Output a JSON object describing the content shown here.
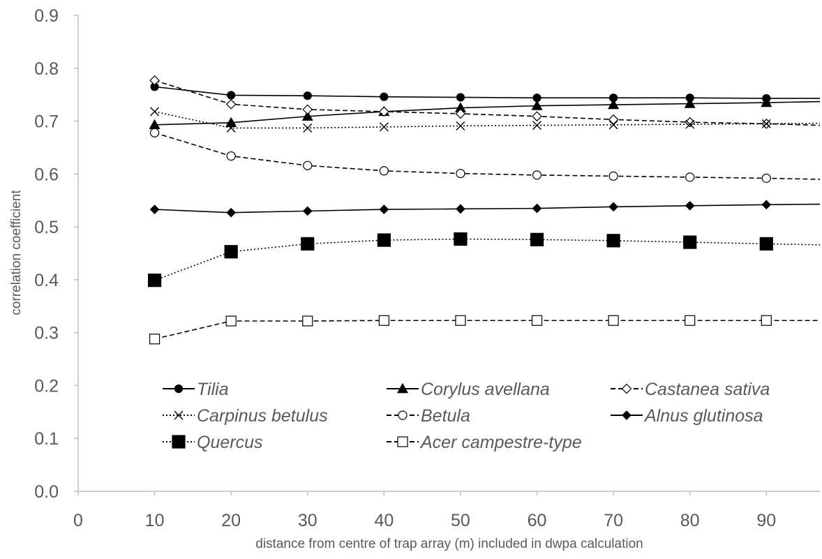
{
  "chart_data": {
    "type": "line",
    "title": "",
    "xlabel": "distance from centre of trap array (m) included in dwpa calculation",
    "ylabel": "correlation coefficient",
    "xlim": [
      0,
      97
    ],
    "ylim": [
      0,
      0.9
    ],
    "x_ticks": [
      "0",
      "10",
      "20",
      "30",
      "40",
      "50",
      "60",
      "70",
      "80",
      "90"
    ],
    "y_ticks": [
      "0.0",
      "0.1",
      "0.2",
      "0.3",
      "0.4",
      "0.5",
      "0.6",
      "0.7",
      "0.8",
      "0.9"
    ],
    "grid": false,
    "legend_position": "inside-bottom",
    "x": [
      10,
      20,
      30,
      40,
      50,
      60,
      70,
      80,
      90
    ],
    "series": [
      {
        "name": "Tilia",
        "marker": "circle-filled",
        "line": "solid",
        "values": [
          0.765,
          0.749,
          0.748,
          0.746,
          0.745,
          0.744,
          0.744,
          0.744,
          0.743
        ],
        "tail": [
          97,
          0.743
        ]
      },
      {
        "name": "Corylus avellana",
        "marker": "triangle-filled",
        "line": "solid",
        "values": [
          0.693,
          0.697,
          0.709,
          0.718,
          0.725,
          0.729,
          0.731,
          0.733,
          0.735
        ],
        "tail": [
          97,
          0.737
        ]
      },
      {
        "name": "Castanea sativa",
        "marker": "diamond-open",
        "line": "dashed",
        "values": [
          0.777,
          0.732,
          0.722,
          0.718,
          0.714,
          0.709,
          0.703,
          0.698,
          0.695
        ],
        "tail": [
          97,
          0.692
        ]
      },
      {
        "name": "Carpinus betulus",
        "marker": "x",
        "line": "dotted",
        "values": [
          0.718,
          0.687,
          0.687,
          0.689,
          0.691,
          0.692,
          0.693,
          0.694,
          0.695
        ],
        "tail": [
          97,
          0.696
        ]
      },
      {
        "name": "Betula",
        "marker": "circle-open",
        "line": "dashed",
        "values": [
          0.678,
          0.634,
          0.616,
          0.606,
          0.601,
          0.598,
          0.596,
          0.594,
          0.592
        ],
        "tail": [
          97,
          0.59
        ]
      },
      {
        "name": "Alnus glutinosa",
        "marker": "diamond-filled",
        "line": "solid",
        "values": [
          0.533,
          0.527,
          0.53,
          0.533,
          0.534,
          0.535,
          0.538,
          0.54,
          0.542
        ],
        "tail": [
          97,
          0.543
        ]
      },
      {
        "name": "Quercus",
        "marker": "square-filled",
        "line": "dotted",
        "values": [
          0.399,
          0.453,
          0.468,
          0.475,
          0.477,
          0.476,
          0.474,
          0.471,
          0.468
        ],
        "tail": [
          97,
          0.466
        ]
      },
      {
        "name": "Acer campestre-type",
        "marker": "square-open",
        "line": "dashed",
        "values": [
          0.288,
          0.322,
          0.322,
          0.323,
          0.323,
          0.323,
          0.323,
          0.323,
          0.323
        ],
        "tail": [
          97,
          0.323
        ]
      }
    ]
  }
}
